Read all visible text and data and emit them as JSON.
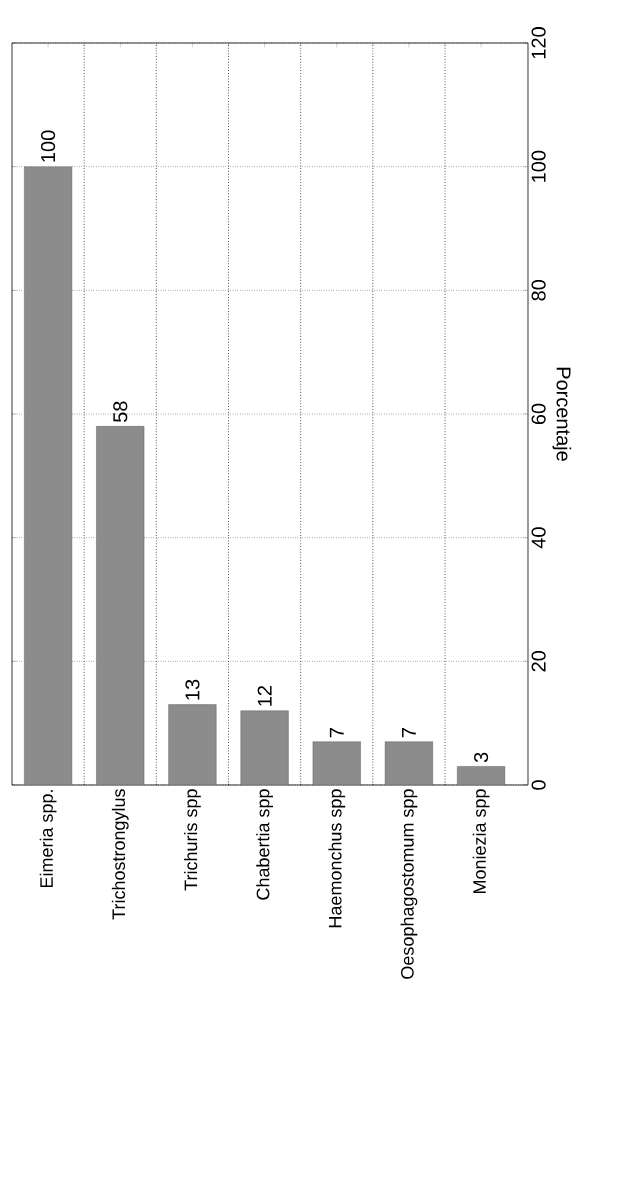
{
  "chart_data": {
    "type": "bar",
    "xlabel": null,
    "ylabel": "Porcentaje",
    "categories": [
      "Eimeria spp.",
      "Trichostrongylus",
      "Trichuris spp",
      "Chabertia spp",
      "Haemonchus spp",
      "Oesophagostomum spp",
      "Moniezia spp"
    ],
    "values": [
      100,
      58,
      13,
      12,
      7,
      7,
      3
    ],
    "color": "#8c8c8c",
    "ylim": [
      0,
      120
    ],
    "yticks": [
      0,
      20,
      40,
      60,
      80,
      100,
      120
    ],
    "grid": true,
    "data_labels": true
  }
}
